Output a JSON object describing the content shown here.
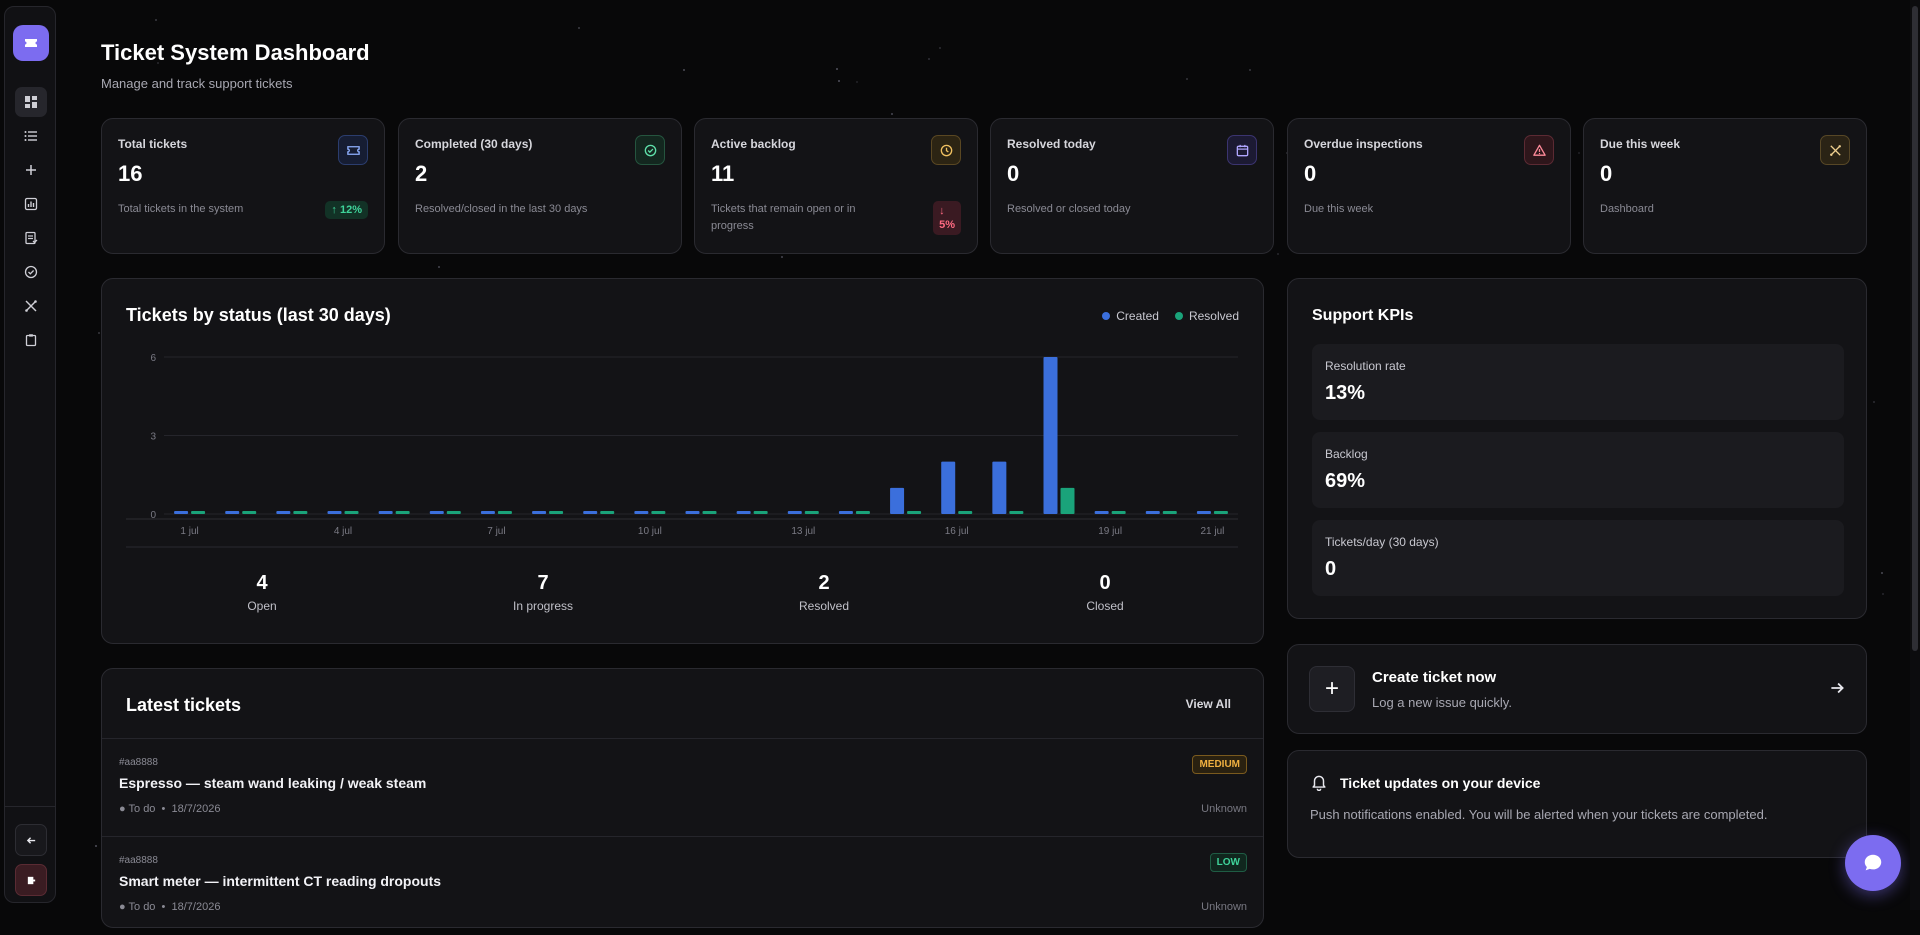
{
  "header": {
    "title": "Ticket System Dashboard",
    "subtitle": "Manage and track support tickets"
  },
  "sidebar": {
    "items": [
      {
        "icon": "dashboard-icon",
        "name": "sidebar-item-dashboard",
        "active": true
      },
      {
        "icon": "list-icon",
        "name": "sidebar-item-tickets"
      },
      {
        "icon": "plus-icon",
        "name": "sidebar-item-create"
      },
      {
        "icon": "chart-icon",
        "name": "sidebar-item-reports"
      },
      {
        "icon": "document-icon",
        "name": "sidebar-item-documents"
      },
      {
        "icon": "check-circle-icon",
        "name": "sidebar-item-completed"
      },
      {
        "icon": "tools-icon",
        "name": "sidebar-item-maintenance"
      },
      {
        "icon": "clipboard-icon",
        "name": "sidebar-item-inspections"
      }
    ]
  },
  "stats": [
    {
      "label": "Total tickets",
      "value": "16",
      "desc": "Total tickets in the system",
      "icon": "ticket-icon",
      "color": "#4f7cf0",
      "trend": "12%",
      "trend_dir": "up"
    },
    {
      "label": "Completed (30 days)",
      "value": "2",
      "desc": "Resolved/closed in the last 30 days",
      "icon": "check-circle-icon",
      "color": "#2fbf8a"
    },
    {
      "label": "Active backlog",
      "value": "11",
      "desc": "Tickets that remain open or in progress",
      "icon": "clock-icon",
      "color": "#e0a43c",
      "trend": "5%",
      "trend_dir": "down"
    },
    {
      "label": "Resolved today",
      "value": "0",
      "desc": "Resolved or closed today",
      "icon": "calendar-icon",
      "color": "#7c6cf0"
    },
    {
      "label": "Overdue inspections",
      "value": "0",
      "desc": "Due this week",
      "icon": "warning-icon",
      "color": "#e0556b"
    },
    {
      "label": "Due this week",
      "value": "0",
      "desc": "Dashboard",
      "icon": "tools-icon",
      "color": "#e0a43c"
    }
  ],
  "chart": {
    "title": "Tickets by status (last 30 days)",
    "legend": [
      "Created",
      "Resolved"
    ],
    "colors": {
      "created": "#3b6fdc",
      "resolved": "#1aa37a"
    }
  },
  "chart_data": {
    "type": "bar",
    "categories": [
      "1 jul",
      "2 jul",
      "3 jul",
      "4 jul",
      "5 jul",
      "6 jul",
      "7 jul",
      "8 jul",
      "9 jul",
      "10 jul",
      "11 jul",
      "12 jul",
      "13 jul",
      "14 jul",
      "15 jul",
      "16 jul",
      "17 jul",
      "18 jul",
      "19 jul",
      "20 jul",
      "21 jul"
    ],
    "tick_labels": [
      "1 jul",
      "4 jul",
      "7 jul",
      "10 jul",
      "13 jul",
      "16 jul",
      "19 jul",
      "21 jul"
    ],
    "series": [
      {
        "name": "Created",
        "values": [
          0,
          0,
          0,
          0,
          0,
          0,
          0,
          0,
          0,
          0,
          0,
          0,
          0,
          0,
          1,
          2,
          2,
          6,
          0,
          0,
          0
        ]
      },
      {
        "name": "Resolved",
        "values": [
          0,
          0,
          0,
          0,
          0,
          0,
          0,
          0,
          0,
          0,
          0,
          0,
          0,
          0,
          0,
          0,
          0,
          1,
          0,
          0,
          0
        ]
      }
    ],
    "yticks": [
      "6",
      "3",
      "0"
    ],
    "ylim": [
      0,
      6
    ],
    "grid": true,
    "legend_position": "top-right"
  },
  "summary": [
    {
      "value": "4",
      "label": "Open"
    },
    {
      "value": "7",
      "label": "In progress"
    },
    {
      "value": "2",
      "label": "Resolved"
    },
    {
      "value": "0",
      "label": "Closed"
    }
  ],
  "tickets": {
    "title": "Latest tickets",
    "view_all": "View All",
    "items": [
      {
        "id": "#aa8888",
        "title": "Espresso — steam wand leaking / weak steam",
        "status": "To do",
        "date": "18/7/2026",
        "priority": "MEDIUM",
        "assignee": "Unknown",
        "color": "#e0a43c"
      },
      {
        "id": "#aa8888",
        "title": "Smart meter — intermittent CT reading dropouts",
        "status": "To do",
        "date": "18/7/2026",
        "priority": "LOW",
        "assignee": "Unknown",
        "color": "#2fbf8a"
      }
    ]
  },
  "kpis": {
    "title": "Support KPIs",
    "items": [
      {
        "label": "Resolution rate",
        "value": "13%"
      },
      {
        "label": "Backlog",
        "value": "69%"
      },
      {
        "label": "Tickets/day (30 days)",
        "value": "0"
      }
    ]
  },
  "create": {
    "title": "Create ticket now",
    "subtitle": "Log a new issue quickly."
  },
  "push": {
    "title": "Ticket updates on your device",
    "text": "Push notifications enabled. You will be alerted when your tickets are completed."
  }
}
